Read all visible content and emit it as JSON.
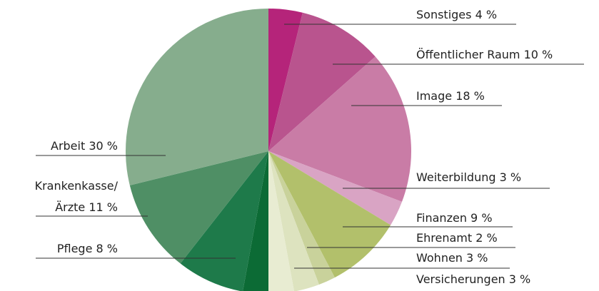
{
  "chart_data": {
    "type": "pie",
    "categories": [
      "Sonstiges",
      "Öffentlicher Raum",
      "Image",
      "Weiterbildung",
      "Finanzen",
      "Ehrenamt",
      "Wohnen",
      "Versicherungen",
      null,
      "Pflege",
      "Krankenkasse/\nÄrzte",
      "Arbeit"
    ],
    "values": [
      4,
      10,
      18,
      3,
      9,
      2,
      3,
      3,
      3,
      8,
      11,
      30
    ],
    "value_labels": [
      "4 %",
      "10 %",
      "18 %",
      "3 %",
      "9 %",
      "2 %",
      "3 %",
      "3 %",
      null,
      "8 %",
      "11 %",
      "30 %"
    ],
    "colors": [
      "#b5247a",
      "#b9548e",
      "#c97ca6",
      "#d9a4c4",
      "#b2c06b",
      "#c9d29b",
      "#dde3bf",
      "#e8ecd2",
      "#0c6b35",
      "#1e7a4a",
      "#4f8f65",
      "#86ad8d"
    ]
  }
}
